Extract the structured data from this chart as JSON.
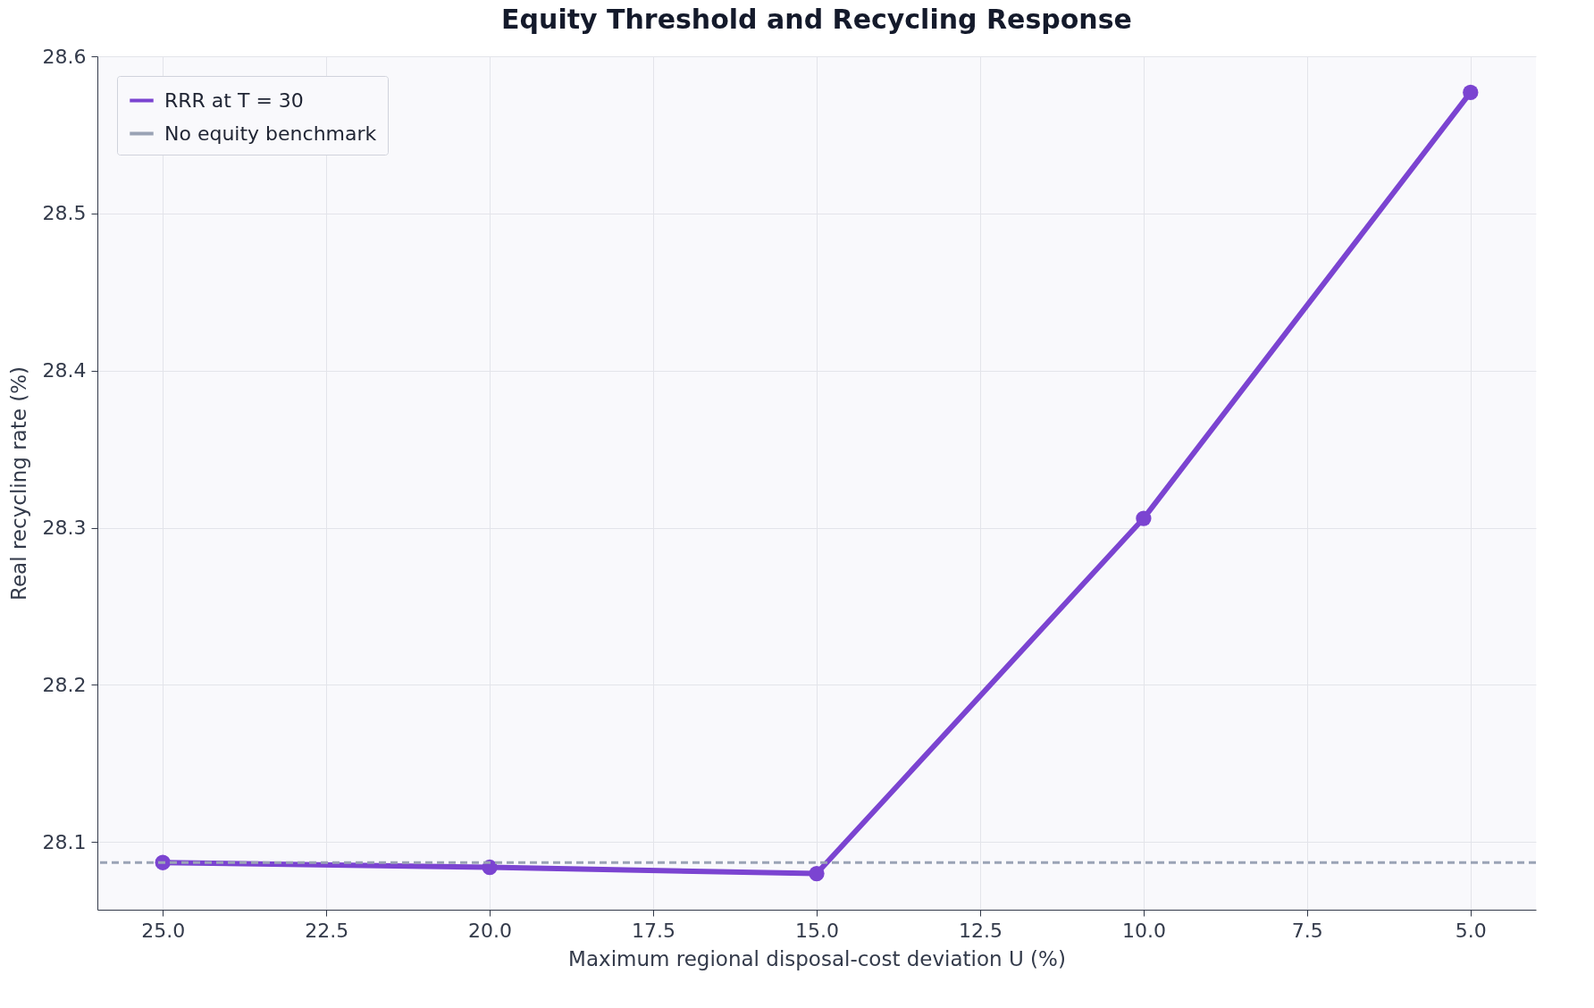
{
  "chart_data": {
    "type": "line",
    "title": "Equity Threshold and Recycling Response",
    "xlabel": "Maximum regional disposal-cost deviation U (%)",
    "ylabel": "Real recycling rate (%)",
    "x": [
      25,
      20,
      15,
      10,
      5
    ],
    "series": [
      {
        "name": "RRR at T = 30",
        "color": "#7b44d1",
        "values": [
          28.087,
          28.084,
          28.08,
          28.306,
          28.577
        ]
      }
    ],
    "xlim": [
      26,
      4
    ],
    "xticks": [
      {
        "value": 25,
        "label": "25.0"
      },
      {
        "value": 22.5,
        "label": "22.5"
      },
      {
        "value": 20,
        "label": "20.0"
      },
      {
        "value": 17.5,
        "label": "17.5"
      },
      {
        "value": 15,
        "label": "15.0"
      },
      {
        "value": 12.5,
        "label": "12.5"
      },
      {
        "value": 10,
        "label": "10.0"
      },
      {
        "value": 7.5,
        "label": "7.5"
      },
      {
        "value": 5,
        "label": "5.0"
      }
    ],
    "ylim": [
      28.057,
      28.6
    ],
    "yticks": [
      28.1,
      28.2,
      28.3,
      28.4,
      28.5,
      28.6
    ],
    "ref_lines": [
      {
        "axis": "y",
        "value": 28.087,
        "label": "No equity benchmark",
        "color": "#9aa3b5",
        "line_style": "dashed"
      }
    ],
    "grid": true,
    "legend": "top left",
    "marker": "circle",
    "line_style": "solid"
  }
}
